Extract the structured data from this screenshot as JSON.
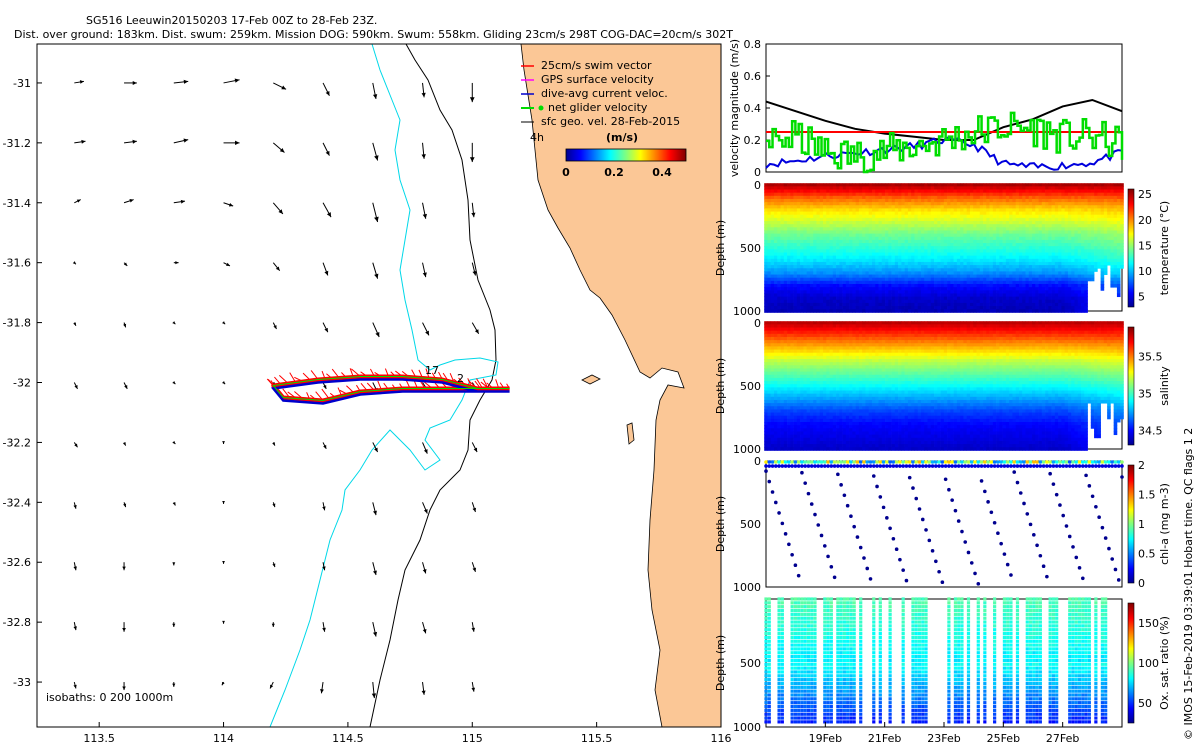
{
  "header": {
    "title": "SG516 Leeuwin20150203 17-Feb 00Z to 28-Feb 23Z.",
    "subtitle": "Dist. over ground: 183km. Dist. swum: 259km. Mission DOG: 590km. Swum: 558km. Gliding 23cm/s 298T COG-DAC=20cm/s 302T"
  },
  "colors": {
    "land": "#fbc796",
    "isobath_200": "#00d8e8",
    "swim_vector": "#ff0000",
    "gps_velocity": "#ff00ff",
    "dac": "#0000cc",
    "net_glider": "#00dd00",
    "sfc_geo": "#000000"
  },
  "chart_data": [
    {
      "id": "map",
      "type": "scatter",
      "title": "",
      "xlabel": "",
      "ylabel": "",
      "xlim": [
        113.25,
        116
      ],
      "ylim": [
        -33.15,
        -30.87
      ],
      "xticks": [
        113.5,
        114,
        114.5,
        115,
        115.5,
        116
      ],
      "yticks": [
        -31,
        -31.2,
        -31.4,
        -31.6,
        -31.8,
        -32,
        -32.2,
        -32.4,
        -32.6,
        -32.8,
        -33
      ],
      "legend": {
        "position": "top-right",
        "entries": [
          "25cm/s swim vector",
          "GPS surface velocity",
          "dive-avg current veloc.",
          "net glider velocity",
          "sfc geo. vel. 28-Feb-2015"
        ],
        "scale_marker": "4h"
      },
      "colorbar": {
        "label": "(m/s)",
        "ticks": [
          0,
          0.2,
          0.4
        ],
        "range": [
          0,
          0.5
        ]
      },
      "annotation_isobaths": "isobaths: 0   200   1000m",
      "track_labels": [
        "17",
        "2"
      ],
      "glider_track": [
        {
          "lon": 115.15,
          "lat": -32.02
        },
        {
          "lon": 115.02,
          "lat": -32.02
        },
        {
          "lon": 114.88,
          "lat": -31.99
        },
        {
          "lon": 114.72,
          "lat": -31.98
        },
        {
          "lon": 114.55,
          "lat": -31.98
        },
        {
          "lon": 114.38,
          "lat": -31.99
        },
        {
          "lon": 114.2,
          "lat": -32.01
        },
        {
          "lon": 114.24,
          "lat": -32.05
        },
        {
          "lon": 114.4,
          "lat": -32.06
        },
        {
          "lon": 114.55,
          "lat": -32.03
        },
        {
          "lon": 114.72,
          "lat": -32.02
        },
        {
          "lon": 114.9,
          "lat": -32.02
        },
        {
          "lon": 115.1,
          "lat": -32.02
        }
      ],
      "sfc_geo_vectors": [
        {
          "row_lat": -31.0,
          "u": [
            0.3,
            0.4,
            0.45,
            0.5,
            0.4,
            0.2,
            0.1,
            0.05,
            0.0
          ],
          "v": [
            0.05,
            0.0,
            0.05,
            0.1,
            -0.2,
            -0.4,
            -0.5,
            -0.45,
            -0.6
          ]
        },
        {
          "row_lat": -31.2,
          "u": [
            0.35,
            0.4,
            0.45,
            0.5,
            0.35,
            0.2,
            0.15,
            0.05,
            0.0
          ],
          "v": [
            0.05,
            0.05,
            0.1,
            0.0,
            -0.3,
            -0.4,
            -0.55,
            -0.5,
            -0.6
          ]
        },
        {
          "row_lat": -31.4,
          "u": [
            0.2,
            0.3,
            0.35,
            0.3,
            0.3,
            0.25,
            0.15,
            0.1,
            0.05
          ],
          "v": [
            0.1,
            0.1,
            0.05,
            -0.1,
            -0.35,
            -0.45,
            -0.6,
            -0.5,
            -0.45
          ]
        },
        {
          "row_lat": -31.6,
          "u": [
            0.05,
            0.1,
            0.15,
            0.2,
            0.2,
            0.15,
            0.15,
            0.1,
            0.1
          ],
          "v": [
            -0.05,
            -0.1,
            0.0,
            -0.1,
            -0.25,
            -0.4,
            -0.5,
            -0.45,
            -0.4
          ]
        },
        {
          "row_lat": -31.8,
          "u": [
            0.05,
            0.05,
            0.05,
            0.05,
            0.1,
            0.15,
            0.2,
            0.2,
            0.2
          ],
          "v": [
            -0.1,
            -0.15,
            -0.05,
            -0.05,
            -0.2,
            -0.3,
            -0.45,
            -0.4,
            -0.35
          ]
        },
        {
          "row_lat": -32.0,
          "u": [
            0.1,
            0.1,
            0.05,
            0.05,
            0.05,
            0.1,
            0.15,
            0.2,
            0.2
          ],
          "v": [
            -0.2,
            -0.2,
            -0.05,
            -0.05,
            -0.1,
            -0.2,
            -0.3,
            -0.3,
            -0.3
          ]
        },
        {
          "row_lat": -32.2,
          "u": [
            0.1,
            0.05,
            0.05,
            0.0,
            0.05,
            0.1,
            0.15,
            0.15,
            0.15
          ],
          "v": [
            -0.15,
            -0.1,
            -0.05,
            -0.05,
            -0.1,
            -0.2,
            -0.3,
            -0.35,
            -0.3
          ]
        },
        {
          "row_lat": -32.4,
          "u": [
            0.05,
            0.05,
            0.05,
            0.0,
            0.05,
            0.05,
            0.1,
            0.15,
            0.1
          ],
          "v": [
            -0.2,
            -0.15,
            -0.1,
            -0.05,
            -0.15,
            -0.25,
            -0.4,
            -0.35,
            -0.3
          ]
        },
        {
          "row_lat": -32.6,
          "u": [
            0.05,
            0.0,
            0.0,
            0.0,
            0.05,
            0.05,
            0.1,
            0.1,
            0.1
          ],
          "v": [
            -0.25,
            -0.25,
            -0.1,
            -0.05,
            -0.15,
            -0.25,
            -0.4,
            -0.35,
            -0.3
          ]
        },
        {
          "row_lat": -32.8,
          "u": [
            0.05,
            0.0,
            0.0,
            0.0,
            0.0,
            0.05,
            0.1,
            0.1,
            0.05
          ],
          "v": [
            -0.25,
            -0.3,
            -0.15,
            -0.05,
            -0.15,
            -0.3,
            -0.45,
            -0.35,
            -0.3
          ]
        },
        {
          "row_lat": -33.0,
          "u": [
            0.05,
            0.0,
            0.0,
            -0.05,
            -0.1,
            -0.05,
            0.05,
            0.05,
            0.05
          ],
          "v": [
            -0.2,
            -0.25,
            -0.15,
            -0.1,
            -0.2,
            -0.35,
            -0.5,
            -0.4,
            -0.3
          ]
        }
      ],
      "vector_col_lons": [
        113.4,
        113.6,
        113.8,
        114.0,
        114.2,
        114.4,
        114.6,
        114.8,
        115.0
      ]
    },
    {
      "id": "velocity",
      "type": "line",
      "ylabel": "velocity magnitude (m/s)",
      "ylim": [
        0,
        0.8
      ],
      "yticks": [
        0,
        0.2,
        0.4,
        0.6,
        0.8
      ],
      "x_days": [
        0,
        1,
        2,
        3,
        4,
        5,
        6,
        7,
        8,
        9,
        10,
        11,
        12
      ],
      "series": [
        {
          "name": "sfc geo. vel.",
          "color": "#000000",
          "values": [
            0.44,
            0.38,
            0.32,
            0.27,
            0.24,
            0.22,
            0.2,
            0.2,
            0.28,
            0.33,
            0.41,
            0.45,
            0.38
          ]
        },
        {
          "name": "swim reference",
          "color": "#ff0000",
          "values": [
            0.25,
            0.25,
            0.25,
            0.25,
            0.25,
            0.25,
            0.25,
            0.25,
            0.25,
            0.25,
            0.25,
            0.25,
            0.25
          ]
        },
        {
          "name": "dive-avg current",
          "color": "#0000dd",
          "values": [
            0.05,
            0.07,
            0.1,
            0.12,
            0.14,
            0.16,
            0.2,
            0.17,
            0.05,
            0.03,
            0.04,
            0.06,
            0.12
          ]
        },
        {
          "name": "net glider velocity",
          "color": "#00dd00",
          "values": [
            0.18,
            0.22,
            0.12,
            0.1,
            0.13,
            0.16,
            0.2,
            0.25,
            0.28,
            0.27,
            0.22,
            0.22,
            0.17
          ]
        }
      ]
    },
    {
      "id": "temperature",
      "type": "heatmap",
      "ylabel": "Depth (m)",
      "yticks": [
        0,
        500,
        1000
      ],
      "colorbar_label": "temperature (°C)",
      "colorbar_ticks": [
        5,
        10,
        15,
        20,
        25
      ],
      "range": [
        3,
        26
      ],
      "profile_depth_m": [
        0,
        100,
        200,
        300,
        400,
        500,
        600,
        700,
        800,
        900,
        1000
      ],
      "values": [
        25,
        21,
        18,
        16,
        14,
        12.5,
        11,
        9,
        6,
        4.5,
        4
      ]
    },
    {
      "id": "salinity",
      "type": "heatmap",
      "ylabel": "Depth (m)",
      "yticks": [
        0,
        500,
        1000
      ],
      "colorbar_label": "salinity",
      "colorbar_ticks": [
        34.5,
        35,
        35.5
      ],
      "range": [
        34.3,
        35.9
      ],
      "profile_depth_m": [
        0,
        100,
        200,
        300,
        400,
        500,
        600,
        700,
        800,
        900,
        1000
      ],
      "values": [
        35.8,
        35.6,
        35.4,
        35.2,
        35.05,
        34.9,
        34.75,
        34.6,
        34.5,
        34.45,
        34.4
      ]
    },
    {
      "id": "chla",
      "type": "scatter",
      "ylabel": "Depth (m)",
      "yticks": [
        0,
        500,
        1000
      ],
      "colorbar_label": "chl-a (mg m-3)",
      "colorbar_ticks": [
        0,
        0.5,
        1,
        1.5,
        2
      ],
      "range": [
        0,
        2
      ]
    },
    {
      "id": "oxygen",
      "type": "scatter",
      "ylabel": "Depth (m)",
      "yticks": [
        500,
        1000
      ],
      "colorbar_label": "Ox. sat. ratio (%)",
      "colorbar_ticks": [
        50,
        100,
        150
      ],
      "range": [
        25,
        175
      ],
      "x_ticks": [
        "19Feb",
        "21Feb",
        "23Feb",
        "25Feb",
        "27Feb"
      ]
    }
  ],
  "credit": "© IMOS 15-Feb-2019 03:39:01 Hobart time. QC flags 1  2"
}
